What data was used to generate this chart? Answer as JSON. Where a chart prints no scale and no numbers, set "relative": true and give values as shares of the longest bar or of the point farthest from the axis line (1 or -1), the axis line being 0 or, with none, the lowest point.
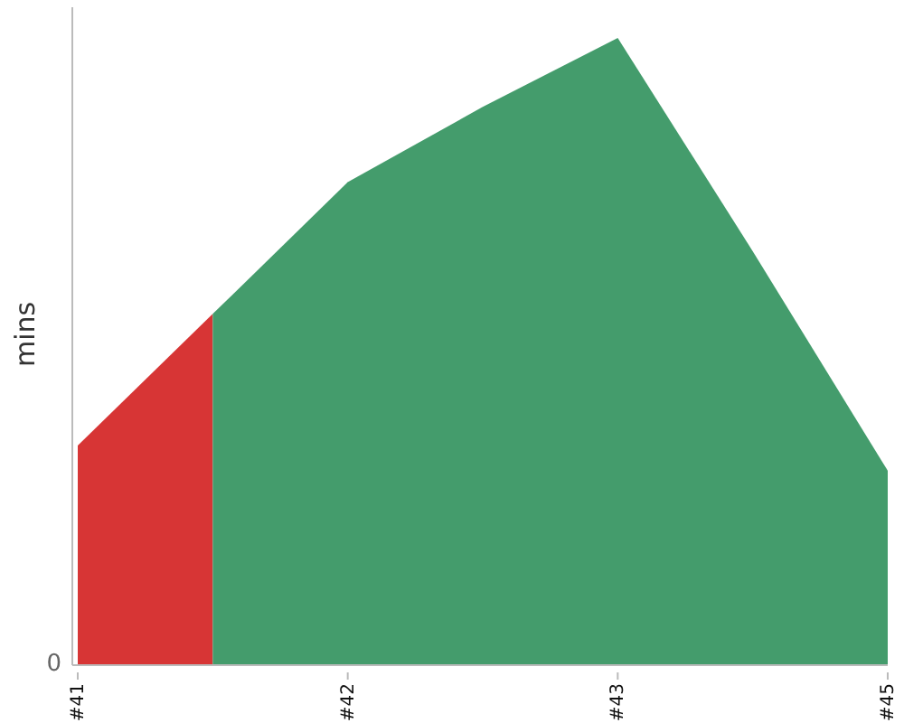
{
  "chart_data": {
    "type": "area",
    "ylabel": "mins",
    "relative": true,
    "categories": [
      "#41",
      null,
      "#42",
      null,
      "#43",
      null,
      "#45"
    ],
    "series": [
      {
        "color": "#d73535",
        "values": [
          0.35,
          0.56,
          null,
          null,
          null,
          null,
          null
        ]
      },
      {
        "color": "#449c6c",
        "values": [
          null,
          0.56,
          0.77,
          0.89,
          1,
          0.66,
          0.31
        ]
      }
    ],
    "annotations": [
      "0"
    ],
    "legend": false,
    "grid": false
  }
}
